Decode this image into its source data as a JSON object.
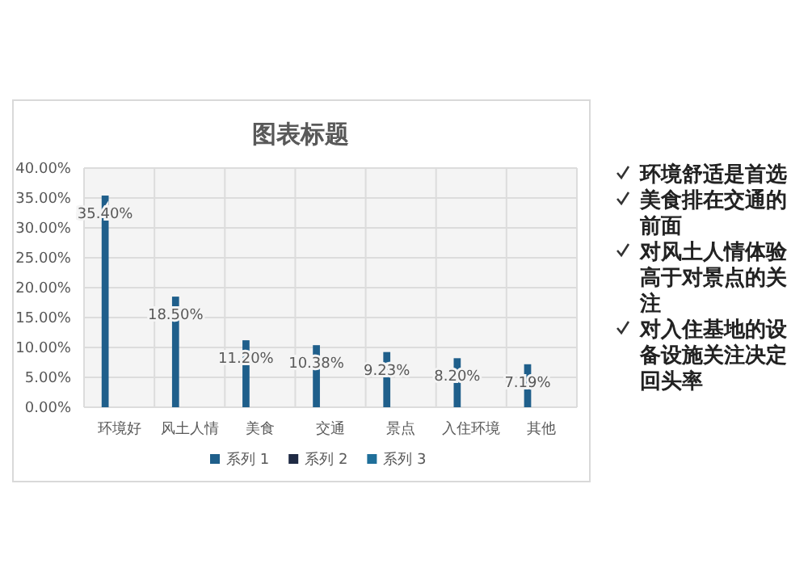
{
  "chart_data": {
    "type": "bar",
    "title": "图表标题",
    "categories": [
      "环境好",
      "风土人情",
      "美食",
      "交通",
      "景点",
      "入住环境",
      "其他"
    ],
    "series": [
      {
        "name": "系列 1",
        "color": "#1f5f8b",
        "values": [
          35.4,
          18.5,
          11.2,
          10.38,
          9.23,
          8.2,
          7.19
        ],
        "value_labels": [
          "35.40%",
          "18.50%",
          "11.20%",
          "10.38%",
          "9.23%",
          "8.20%",
          "7.19%"
        ]
      },
      {
        "name": "系列 2",
        "color": "#1f2a44",
        "values": [
          null,
          null,
          null,
          null,
          null,
          null,
          null
        ]
      },
      {
        "name": "系列 3",
        "color": "#1f6f9a",
        "values": [
          null,
          null,
          null,
          null,
          null,
          null,
          null
        ]
      }
    ],
    "ylim": [
      0,
      40
    ],
    "yticks": [
      {
        "value": 0,
        "label": "0.00%"
      },
      {
        "value": 5,
        "label": "5.00%"
      },
      {
        "value": 10,
        "label": "10.00%"
      },
      {
        "value": 15,
        "label": "15.00%"
      },
      {
        "value": 20,
        "label": "20.00%"
      },
      {
        "value": 25,
        "label": "25.00%"
      },
      {
        "value": 30,
        "label": "30.00%"
      },
      {
        "value": 35,
        "label": "35.00%"
      },
      {
        "value": 40,
        "label": "40.00%"
      }
    ],
    "grid": true,
    "legend": "bottom",
    "annotations": [
      "环境舒适是首选",
      "美食排在交通的前面",
      "对风土人情体验高于对景点的关注",
      "对入住基地的设备设施关注决定回头率"
    ]
  }
}
